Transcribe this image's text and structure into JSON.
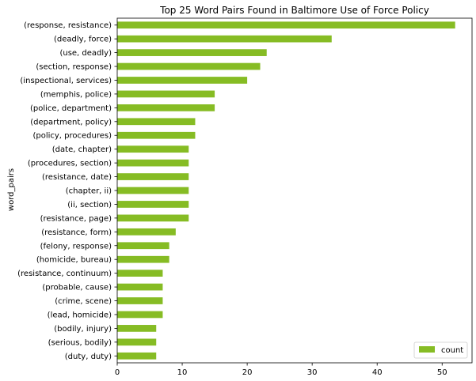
{
  "chart_data": {
    "type": "bar",
    "orientation": "horizontal",
    "title": "Top 25 Word Pairs Found in Baltimore Use of Force Policy",
    "xlabel": "",
    "ylabel": "word_pairs",
    "xlim": [
      0,
      54.6
    ],
    "x_ticks": [
      "0",
      "10",
      "20",
      "30",
      "40",
      "50"
    ],
    "x_tick_values": [
      0,
      10,
      20,
      30,
      40,
      50
    ],
    "grid": false,
    "legend": {
      "position": "bottom-right",
      "entries": [
        "count"
      ]
    },
    "bar_color": "#86bc24",
    "categories": [
      "(response, resistance)",
      "(deadly, force)",
      "(use, deadly)",
      "(section, response)",
      "(inspectional, services)",
      "(memphis, police)",
      "(police, department)",
      "(department, policy)",
      "(policy, procedures)",
      "(date, chapter)",
      "(procedures, section)",
      "(resistance, date)",
      "(chapter, ii)",
      "(ii, section)",
      "(resistance, page)",
      "(resistance, form)",
      "(felony, response)",
      "(homicide, bureau)",
      "(resistance, continuum)",
      "(probable, cause)",
      "(crime, scene)",
      "(lead, homicide)",
      "(bodily, injury)",
      "(serious, bodily)",
      "(duty, duty)"
    ],
    "series": [
      {
        "name": "count",
        "values": [
          52,
          33,
          23,
          22,
          20,
          15,
          15,
          12,
          12,
          11,
          11,
          11,
          11,
          11,
          11,
          9,
          8,
          8,
          7,
          7,
          7,
          7,
          6,
          6,
          6
        ]
      }
    ]
  }
}
